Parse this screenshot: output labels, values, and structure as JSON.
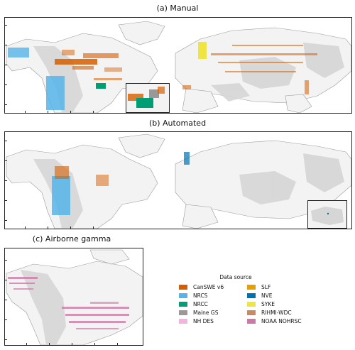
{
  "panels": {
    "manual": {
      "title": "(a) Manual"
    },
    "automated": {
      "title": "(b) Automated"
    },
    "airborne": {
      "title": "(c) Airborne gamma"
    }
  },
  "legend": {
    "title": "Data source",
    "items": [
      {
        "label": "CanSWE v6",
        "color": "#d55e00"
      },
      {
        "label": "SLF",
        "color": "#e69f00"
      },
      {
        "label": "NRCS",
        "color": "#56b4e9"
      },
      {
        "label": "NVE",
        "color": "#0072b2"
      },
      {
        "label": "NRCC",
        "color": "#009e73"
      },
      {
        "label": "SYKE",
        "color": "#f0e442"
      },
      {
        "label": "Maine GS",
        "color": "#999999"
      },
      {
        "label": "RIHMI-WDC",
        "color": "#c98a62"
      },
      {
        "label": "NH DES",
        "color": "#f2b6de"
      },
      {
        "label": "NOAA NOHRSC",
        "color": "#cc79a7"
      }
    ]
  },
  "colors": {
    "land": "#f3f3f3",
    "mountain": "#d6d6d6",
    "border": "#9a9a9a",
    "frame": "#222222"
  }
}
